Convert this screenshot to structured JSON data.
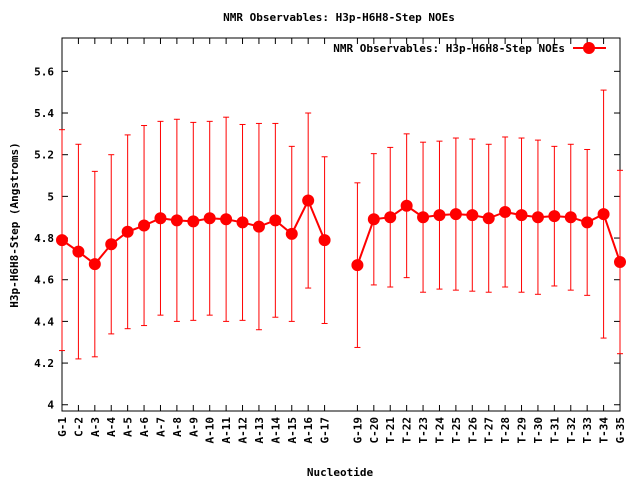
{
  "chart_data": {
    "type": "line",
    "title": "NMR Observables: H3p-H6H8-Step NOEs",
    "xlabel": "Nucleotide",
    "ylabel": "H3p-H6H8-Step (Angstroms)",
    "ylim": [
      3.97,
      5.76
    ],
    "yticks": [
      "4",
      "4.2",
      "4.4",
      "4.6",
      "4.8",
      "5",
      "5.2",
      "5.4",
      "5.6"
    ],
    "grid": false,
    "legend_position": "top-right",
    "series_color": "#ff0000",
    "series": [
      {
        "name": "NMR Observables: H3p-H6H8-Step NOEs",
        "segments": [
          [
            {
              "x": "G-1",
              "y": 4.79,
              "err": 0.53
            },
            {
              "x": "C-2",
              "y": 4.735,
              "err": 0.515
            },
            {
              "x": "A-3",
              "y": 4.675,
              "err": 0.445
            },
            {
              "x": "A-4",
              "y": 4.77,
              "err": 0.43
            },
            {
              "x": "A-5",
              "y": 4.83,
              "err": 0.465
            },
            {
              "x": "A-6",
              "y": 4.86,
              "err": 0.48
            },
            {
              "x": "A-7",
              "y": 4.895,
              "err": 0.465
            },
            {
              "x": "A-8",
              "y": 4.885,
              "err": 0.485
            },
            {
              "x": "A-9",
              "y": 4.88,
              "err": 0.475
            },
            {
              "x": "A-10",
              "y": 4.895,
              "err": 0.465
            },
            {
              "x": "A-11",
              "y": 4.89,
              "err": 0.49
            },
            {
              "x": "A-12",
              "y": 4.875,
              "err": 0.47
            },
            {
              "x": "A-13",
              "y": 4.855,
              "err": 0.495
            },
            {
              "x": "A-14",
              "y": 4.885,
              "err": 0.465
            },
            {
              "x": "A-15",
              "y": 4.82,
              "err": 0.42
            },
            {
              "x": "A-16",
              "y": 4.98,
              "err": 0.42
            },
            {
              "x": "G-17",
              "y": 4.79,
              "err": 0.4
            }
          ],
          [
            {
              "x": "G-19",
              "y": 4.67,
              "err": 0.395
            },
            {
              "x": "C-20",
              "y": 4.89,
              "err": 0.315
            },
            {
              "x": "T-21",
              "y": 4.9,
              "err": 0.335
            },
            {
              "x": "T-22",
              "y": 4.955,
              "err": 0.345
            },
            {
              "x": "T-23",
              "y": 4.9,
              "err": 0.36
            },
            {
              "x": "T-24",
              "y": 4.91,
              "err": 0.355
            },
            {
              "x": "T-25",
              "y": 4.915,
              "err": 0.365
            },
            {
              "x": "T-26",
              "y": 4.91,
              "err": 0.365
            },
            {
              "x": "T-27",
              "y": 4.895,
              "err": 0.355
            },
            {
              "x": "T-28",
              "y": 4.925,
              "err": 0.36
            },
            {
              "x": "T-29",
              "y": 4.91,
              "err": 0.37
            },
            {
              "x": "T-30",
              "y": 4.9,
              "err": 0.37
            },
            {
              "x": "T-31",
              "y": 4.905,
              "err": 0.335
            },
            {
              "x": "T-32",
              "y": 4.9,
              "err": 0.35
            },
            {
              "x": "T-33",
              "y": 4.875,
              "err": 0.35
            },
            {
              "x": "T-34",
              "y": 4.915,
              "err": 0.595
            },
            {
              "x": "G-35",
              "y": 4.685,
              "err": 0.44
            }
          ]
        ]
      }
    ],
    "categories": [
      "G-1",
      "C-2",
      "A-3",
      "A-4",
      "A-5",
      "A-6",
      "A-7",
      "A-8",
      "A-9",
      "A-10",
      "A-11",
      "A-12",
      "A-13",
      "A-14",
      "A-15",
      "A-16",
      "G-17",
      "",
      "G-19",
      "C-20",
      "T-21",
      "T-22",
      "T-23",
      "T-24",
      "T-25",
      "T-26",
      "T-27",
      "T-28",
      "T-29",
      "T-30",
      "T-31",
      "T-32",
      "T-33",
      "T-34",
      "G-35"
    ]
  }
}
